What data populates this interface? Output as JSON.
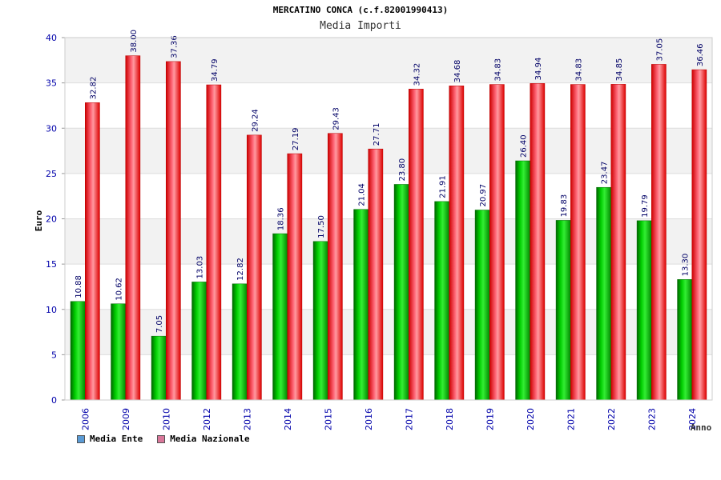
{
  "title": "MERCATINO CONCA (c.f.82001990413)",
  "subtitle": "Media Importi",
  "legend": [
    {
      "label": "Media Ente",
      "color": "#5b9bd5"
    },
    {
      "label": "Media Nazionale",
      "color": "#d9779a"
    }
  ],
  "colors": {
    "ente_bar": "#00b000",
    "nazionale_bar": "#ee1111",
    "plot_band": "#f2f2f2",
    "axis_label": "#0000aa",
    "value_label": "#000066"
  },
  "chart_data": {
    "type": "bar",
    "title": "MERCATINO CONCA (c.f.82001990413)",
    "subtitle": "Media Importi",
    "xlabel": "Anno",
    "ylabel": "Euro",
    "ylim": [
      0,
      40
    ],
    "yticks": [
      0,
      5,
      10,
      15,
      20,
      25,
      30,
      35,
      40
    ],
    "grid": true,
    "legend_position": "bottom-left",
    "categories": [
      "2006",
      "2009",
      "2010",
      "2012",
      "2013",
      "2014",
      "2015",
      "2016",
      "2017",
      "2018",
      "2019",
      "2020",
      "2021",
      "2022",
      "2023",
      "2024"
    ],
    "series": [
      {
        "name": "Media Ente",
        "values": [
          10.88,
          10.62,
          7.05,
          13.03,
          12.82,
          18.36,
          17.5,
          21.04,
          23.8,
          21.91,
          20.97,
          26.4,
          19.83,
          23.47,
          19.79,
          13.3
        ],
        "labels": [
          "10.88",
          "10.62",
          "7.05",
          "13.03",
          "12.82",
          "18.36",
          "17.50",
          "21.04",
          "23.80",
          "21.91",
          "20.97",
          "26.40",
          "19.83",
          "23.47",
          "19.79",
          "13.30"
        ]
      },
      {
        "name": "Media Nazionale",
        "values": [
          32.82,
          38.0,
          37.36,
          34.79,
          29.24,
          27.19,
          29.43,
          27.71,
          34.32,
          34.68,
          34.83,
          34.94,
          34.83,
          34.85,
          37.05,
          36.46
        ],
        "labels": [
          "32.82",
          "38.00",
          "37.36",
          "34.79",
          "29.24",
          "27.19",
          "29.43",
          "27.71",
          "34.32",
          "34.68",
          "34.83",
          "34.94",
          "34.83",
          "34.85",
          "37.05",
          "36.46"
        ]
      }
    ]
  }
}
